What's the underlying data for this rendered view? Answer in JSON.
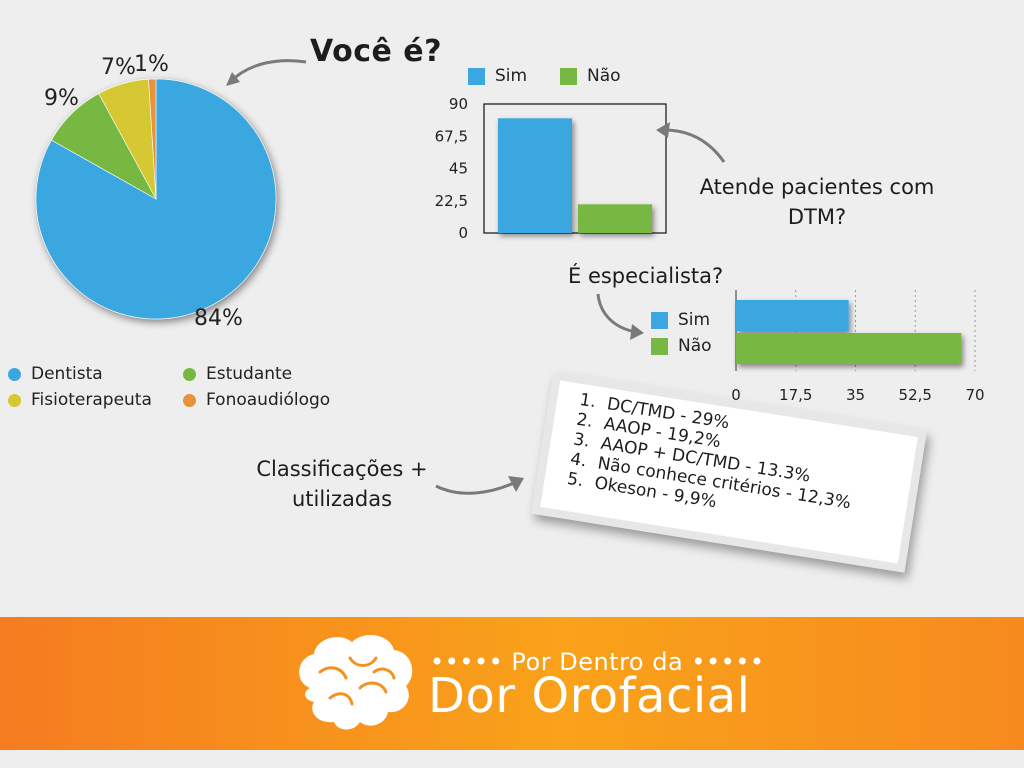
{
  "questions": {
    "voce_e": "Você é?",
    "atende": "Atende pacientes com DTM?",
    "especialista": "É especialista?",
    "classificacoes": "Classificações + utilizadas"
  },
  "pie_legend": [
    {
      "label": "Dentista",
      "color": "#3aa7e0"
    },
    {
      "label": "Estudante",
      "color": "#77b843"
    },
    {
      "label": "Fisioterapeuta",
      "color": "#d6c832"
    },
    {
      "label": "Fonoaudiólogo",
      "color": "#e8923a"
    }
  ],
  "classifications": [
    "DC/TMD - 29%",
    "AAOP - 19,2%",
    "AAOP + DC/TMD - 13.3%",
    "Não conhece critérios - 12,3%",
    "Okeson - 9,9%"
  ],
  "brand": {
    "top_line": "••••• Por Dentro da •••••",
    "main_line": "Dor Orofacial",
    "logo_icon": "brain-icon"
  },
  "chart_data": [
    {
      "type": "pie",
      "categories": [
        "Dentista",
        "Estudante",
        "Fisioterapeuta",
        "Fonoaudiólogo"
      ],
      "values": [
        84,
        9,
        7,
        1
      ],
      "labels": [
        "84%",
        "9%",
        "7%",
        "1%"
      ],
      "colors": [
        "#3aa7e0",
        "#77b843",
        "#d6c832",
        "#e8923a"
      ],
      "legend_placement": "bottom"
    },
    {
      "type": "bar",
      "orientation": "vertical",
      "categories": [
        "Sim",
        "Não"
      ],
      "values": [
        80,
        20
      ],
      "colors": [
        "#3aa7e0",
        "#77b843"
      ],
      "ylim": [
        0,
        90
      ],
      "yticks": [
        "90",
        "67,5",
        "45",
        "22,5",
        "0"
      ],
      "legend": [
        "Sim",
        "Não"
      ],
      "legend_placement": "top",
      "grid": false
    },
    {
      "type": "bar",
      "orientation": "horizontal",
      "categories": [
        "Sim",
        "Não"
      ],
      "values": [
        33,
        66
      ],
      "colors": [
        "#3aa7e0",
        "#77b843"
      ],
      "xlim": [
        0,
        70
      ],
      "xticks": [
        "0",
        "17,5",
        "35",
        "52,5",
        "70"
      ],
      "legend": [
        "Sim",
        "Não"
      ],
      "legend_placement": "left",
      "grid": true
    }
  ]
}
